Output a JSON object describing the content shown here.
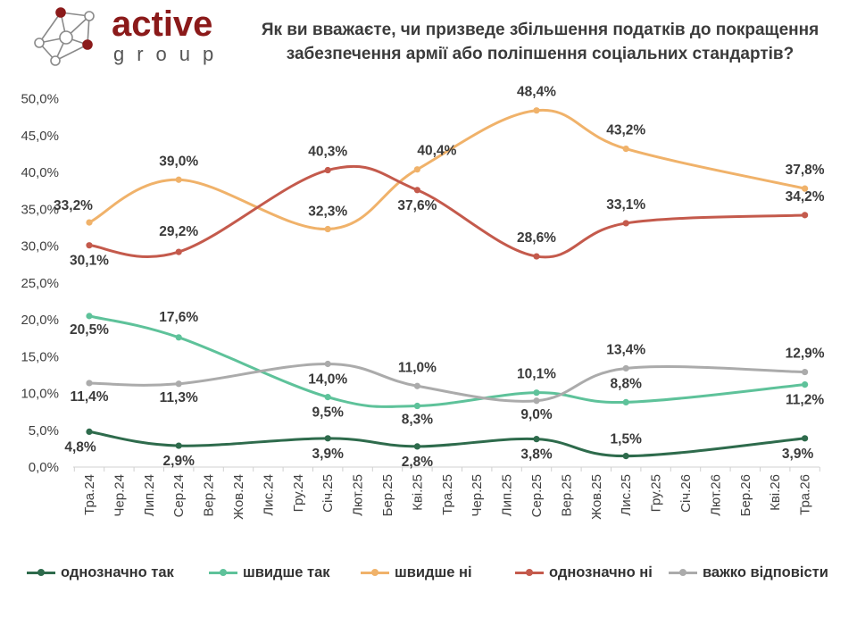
{
  "logo": {
    "word": "active",
    "sub": "group"
  },
  "title": {
    "line1": "Як ви вважаєте, чи призведе збільшення податків до покращення",
    "line2": "забезпечення армії або поліпшення соціальних стандартів?"
  },
  "chart_data": {
    "type": "line",
    "categories": [
      "Тра.24",
      "Чер.24",
      "Лип.24",
      "Сер.24",
      "Вер.24",
      "Жов.24",
      "Лис.24",
      "Гру.24",
      "Січ.25",
      "Лют.25",
      "Бер.25",
      "Кві.25",
      "Тра.25",
      "Чер.25",
      "Лип.25",
      "Сер.25",
      "Вер.25",
      "Жов.25",
      "Лис.25",
      "Гру.25",
      "Січ.26",
      "Лют.26",
      "Бер.26",
      "Кві.26",
      "Тра.26"
    ],
    "y_ticks": [
      "0,0%",
      "5,0%",
      "10,0%",
      "15,0%",
      "20,0%",
      "25,0%",
      "30,0%",
      "35,0%",
      "40,0%",
      "45,0%",
      "50,0%"
    ],
    "ylim": [
      0,
      50
    ],
    "grid": false,
    "legend_position": "bottom",
    "series": [
      {
        "name": "однозначно так",
        "color": "#2e6b4c",
        "points": [
          [
            0,
            4.8
          ],
          [
            3,
            2.9
          ],
          [
            8,
            3.9
          ],
          [
            11,
            2.8
          ],
          [
            15,
            3.8
          ],
          [
            18,
            1.5
          ],
          [
            24,
            3.9
          ]
        ],
        "labels": [
          "4,8%",
          "2,9%",
          "3,9%",
          "2,8%",
          "3,8%",
          "1,5%",
          "3,9%"
        ]
      },
      {
        "name": "швидше так",
        "color": "#5ec29a",
        "points": [
          [
            0,
            20.5
          ],
          [
            3,
            17.6
          ],
          [
            8,
            9.5
          ],
          [
            11,
            8.3
          ],
          [
            15,
            10.1
          ],
          [
            18,
            8.8
          ],
          [
            24,
            11.2
          ]
        ],
        "labels": [
          "20,5%",
          "17,6%",
          "9,5%",
          "8,3%",
          "10,1%",
          "8,8%",
          "11,2%"
        ]
      },
      {
        "name": "швидше ні",
        "color": "#f0b26a",
        "points": [
          [
            0,
            33.2
          ],
          [
            3,
            39.0
          ],
          [
            8,
            32.3
          ],
          [
            11,
            40.4
          ],
          [
            15,
            48.4
          ],
          [
            18,
            43.2
          ],
          [
            24,
            37.8
          ]
        ],
        "labels": [
          "33,2%",
          "39,0%",
          "32,3%",
          "40,4%",
          "48,4%",
          "43,2%",
          "37,8%"
        ]
      },
      {
        "name": "однозначно ні",
        "color": "#c45a4c",
        "points": [
          [
            0,
            30.1
          ],
          [
            3,
            29.2
          ],
          [
            8,
            40.3
          ],
          [
            11,
            37.6
          ],
          [
            15,
            28.6
          ],
          [
            18,
            33.1
          ],
          [
            24,
            34.2
          ]
        ],
        "labels": [
          "30,1%",
          "29,2%",
          "40,3%",
          "37,6%",
          "28,6%",
          "33,1%",
          "34,2%"
        ]
      },
      {
        "name": "важко відповісти",
        "color": "#ababab",
        "points": [
          [
            0,
            11.4
          ],
          [
            3,
            11.3
          ],
          [
            8,
            14.0
          ],
          [
            11,
            11.0
          ],
          [
            15,
            9.0
          ],
          [
            18,
            13.4
          ],
          [
            24,
            12.9
          ]
        ],
        "labels": [
          "11,4%",
          "11,3%",
          "14,0%",
          "11,0%",
          "9,0%",
          "13,4%",
          "12,9%"
        ]
      }
    ]
  }
}
